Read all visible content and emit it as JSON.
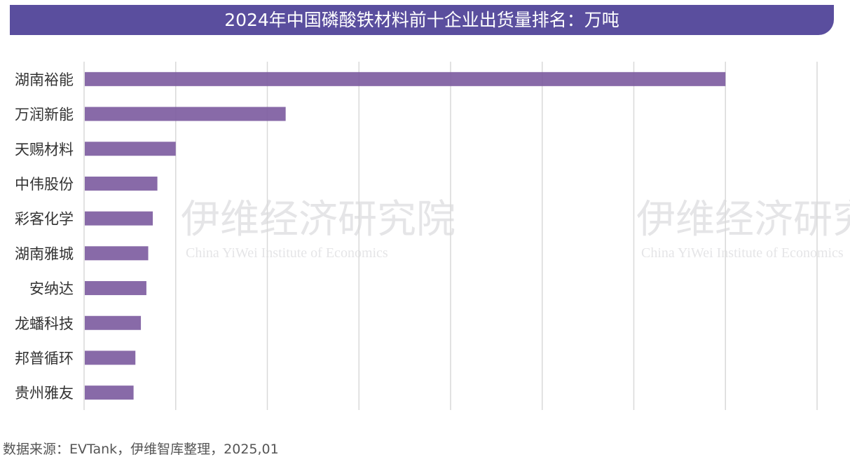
{
  "title": "2024年中国磷酸铁材料前十企业出货量排名：万吨",
  "source": "数据来源：EVTank，伊维智库整理，2025,01",
  "watermark": {
    "cn": "伊维经济研究院",
    "en": "China YiWei Institute of Economics",
    "logo_cn": "伊维智库",
    "logo": "EVTank"
  },
  "colors": {
    "bar": "#7b5a9e",
    "title_bg": "#5a4e9e",
    "grid": "#d9d9d9"
  },
  "chart_data": {
    "type": "bar",
    "orientation": "horizontal",
    "title": "2024年中国磷酸铁材料前十企业出货量排名：万吨",
    "categories": [
      "湖南裕能",
      "万润新能",
      "天赐材料",
      "中伟股份",
      "彩客化学",
      "湖南雅城",
      "安纳达",
      "龙蟠科技",
      "邦普循环",
      "贵州雅友"
    ],
    "values": [
      70,
      22,
      10,
      8,
      7.5,
      7,
      6.8,
      6.2,
      5.6,
      5.4
    ],
    "xlim": [
      0,
      80
    ],
    "grid": true,
    "tick_labels_shown": false
  }
}
